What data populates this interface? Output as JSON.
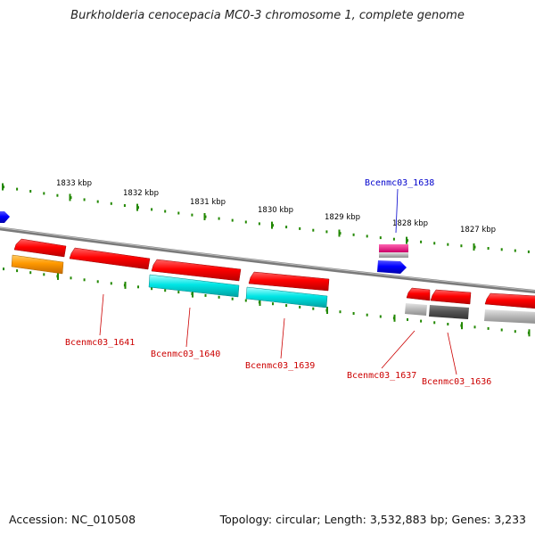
{
  "title": "Burkholderia cenocepacia MC0-3 chromosome 1, complete genome",
  "accession_text": "Accession: NC_010508",
  "topology_text": "Topology: circular; Length: 3,532,883 bp; Genes: 3,233",
  "ruler_labels": [
    "1833 kbp",
    "1832 kbp",
    "1831 kbp",
    "1830 kbp",
    "1829 kbp",
    "1828 kbp",
    "1827 kbp"
  ],
  "gene_labels": [
    {
      "text": "Bcenmc03_1638",
      "color": "#0000cc"
    },
    {
      "text": "Bcenmc03_1641",
      "color": "#cc0000"
    },
    {
      "text": "Bcenmc03_1640",
      "color": "#cc0000"
    },
    {
      "text": "Bcenmc03_1639",
      "color": "#cc0000"
    },
    {
      "text": "Bcenmc03_1637",
      "color": "#cc0000"
    },
    {
      "text": "Bcenmc03_1636",
      "color": "#cc0000"
    }
  ],
  "colors": {
    "red": "#ff0000",
    "blue": "#0000ff",
    "orange": "#ff9900",
    "cyan": "#00e5e5",
    "magenta": "#ff0080",
    "light_gray": "#bbbbbb",
    "dark_gray": "#555555",
    "backbone": "#888888",
    "tick_green": "#228800"
  }
}
